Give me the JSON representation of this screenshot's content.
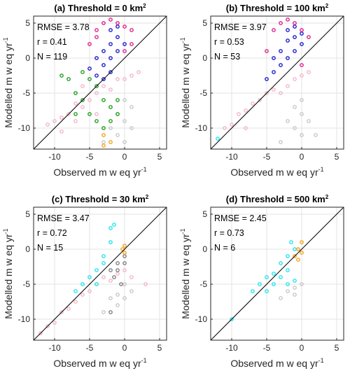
{
  "figure": {
    "xlabel_text": "Observed  m w eq yr",
    "ylabel_text": "Modelled m w eq yr",
    "unit_superscript": "-1"
  },
  "colors": {
    "pink": "#f4b6c8",
    "grey": "#c8c8c8",
    "darkgrey": "#808080",
    "green": "#1e9e1e",
    "blue": "#1a1ad0",
    "magenta": "#e0208a",
    "cyan": "#22e6f0",
    "orange": "#f5a21c",
    "line": "#000000"
  },
  "chart_data": [
    {
      "type": "scatter",
      "panel": "(a)",
      "title": "Threshold = 0 km",
      "title_superscript": "2",
      "xlabel": "Observed  m w eq yr-1",
      "ylabel": "Modelled m w eq yr-1",
      "xlim": [
        -13,
        6
      ],
      "ylim": [
        -13,
        6
      ],
      "xticks": [
        -10,
        -5,
        0,
        5
      ],
      "yticks": [
        -10,
        -5,
        0,
        5
      ],
      "grid": true,
      "one_to_one_line": true,
      "stats": [
        "RMSE = 3.78",
        "r = 0.41",
        "N = 119"
      ],
      "series": [
        {
          "color_key": "pink",
          "points": [
            [
              -11,
              -9.5
            ],
            [
              -10,
              -9
            ],
            [
              -9,
              -8.5
            ],
            [
              -8,
              -8
            ],
            [
              -7,
              -6.5
            ],
            [
              -6,
              -7
            ],
            [
              -5,
              -6
            ],
            [
              -4,
              -5
            ],
            [
              -3,
              -4
            ],
            [
              -2,
              -4.5
            ],
            [
              -1,
              -3
            ],
            [
              0,
              -3
            ],
            [
              1,
              -2.5
            ],
            [
              2,
              -2
            ],
            [
              -6,
              -4
            ],
            [
              -7,
              -9
            ],
            [
              -9,
              -10.5
            ],
            [
              -4,
              -8
            ]
          ]
        },
        {
          "color_key": "grey",
          "points": [
            [
              -2,
              -10
            ],
            [
              -1,
              -11
            ],
            [
              0,
              -12
            ],
            [
              -1,
              -8
            ],
            [
              0,
              -9
            ],
            [
              1,
              -10
            ],
            [
              -3,
              -12
            ],
            [
              0,
              -6
            ],
            [
              1,
              -7
            ]
          ]
        },
        {
          "color_key": "green",
          "points": [
            [
              -9,
              -2.5
            ],
            [
              -8,
              -3
            ],
            [
              -7,
              -5
            ],
            [
              -6,
              -6
            ],
            [
              -5,
              -8
            ],
            [
              -4,
              -9
            ],
            [
              -3,
              -10
            ],
            [
              -2,
              -9
            ],
            [
              -1,
              -8
            ],
            [
              -6,
              -2
            ],
            [
              -5,
              -3
            ],
            [
              -4,
              -4
            ],
            [
              -3,
              -6
            ],
            [
              -2,
              -7
            ],
            [
              -1,
              -6
            ],
            [
              -7,
              -8
            ]
          ]
        },
        {
          "color_key": "blue",
          "points": [
            [
              -4,
              -2.5
            ],
            [
              -3,
              -1
            ],
            [
              -2,
              0
            ],
            [
              -1,
              1
            ],
            [
              0,
              2
            ],
            [
              -3,
              1
            ],
            [
              -2,
              2
            ],
            [
              -1,
              3
            ],
            [
              -2,
              4
            ],
            [
              -1,
              4.5
            ],
            [
              -4,
              0
            ],
            [
              -5,
              -1.5
            ],
            [
              -3,
              -3
            ],
            [
              -2,
              -2
            ]
          ]
        },
        {
          "color_key": "magenta",
          "points": [
            [
              -4,
              4
            ],
            [
              -3,
              5
            ],
            [
              -2,
              5.5
            ],
            [
              -1,
              5
            ],
            [
              0,
              4.5
            ],
            [
              1,
              4
            ],
            [
              -5,
              2
            ],
            [
              -4,
              3
            ],
            [
              0,
              1
            ],
            [
              1,
              2
            ]
          ]
        },
        {
          "color_key": "orange",
          "points": [
            [
              -3,
              -11
            ],
            [
              -2,
              -12
            ],
            [
              -3,
              -12.5
            ]
          ]
        }
      ]
    },
    {
      "type": "scatter",
      "panel": "(b)",
      "title": "Threshold = 100 km",
      "title_superscript": "2",
      "xlabel": "Observed  m w eq yr-1",
      "ylabel": "Modelled m w eq yr-1",
      "xlim": [
        -13,
        6
      ],
      "ylim": [
        -13,
        6
      ],
      "xticks": [
        -10,
        -5,
        0,
        5
      ],
      "yticks": [
        -10,
        -5,
        0,
        5
      ],
      "grid": true,
      "one_to_one_line": true,
      "stats": [
        "RMSE = 3.97",
        "r = 0.53",
        "N = 53"
      ],
      "series": [
        {
          "color_key": "pink",
          "points": [
            [
              -11,
              -10
            ],
            [
              -10,
              -9.5
            ],
            [
              -9,
              -8
            ],
            [
              -8,
              -7.5
            ],
            [
              -7,
              -6.5
            ],
            [
              -6,
              -6
            ],
            [
              -5,
              -5
            ],
            [
              -4,
              -4.5
            ],
            [
              -3,
              -5
            ],
            [
              -2,
              -4
            ],
            [
              -1,
              -3
            ],
            [
              0,
              -2.5
            ],
            [
              1,
              -2
            ],
            [
              -8,
              -10
            ]
          ]
        },
        {
          "color_key": "grey",
          "points": [
            [
              -2,
              -9
            ],
            [
              -1,
              -10
            ],
            [
              0,
              -11
            ],
            [
              -1,
              -7
            ],
            [
              0,
              -8
            ],
            [
              1,
              -9
            ],
            [
              2,
              -11
            ],
            [
              -3,
              -12
            ],
            [
              0,
              -6
            ]
          ]
        },
        {
          "color_key": "cyan",
          "points": [
            [
              -12,
              -11.5
            ]
          ]
        },
        {
          "color_key": "blue",
          "points": [
            [
              -4,
              -2
            ],
            [
              -3,
              -1
            ],
            [
              -2,
              0
            ],
            [
              -1,
              1
            ],
            [
              0,
              2
            ],
            [
              -3,
              1
            ],
            [
              -2,
              2.5
            ],
            [
              -1,
              3
            ],
            [
              -2,
              4
            ],
            [
              -1,
              4.5
            ],
            [
              -5,
              -3
            ],
            [
              -4,
              0
            ],
            [
              0,
              3.5
            ]
          ]
        },
        {
          "color_key": "magenta",
          "points": [
            [
              -4,
              4
            ],
            [
              -3,
              5
            ],
            [
              -2,
              5.5
            ],
            [
              -1,
              5
            ],
            [
              0,
              4
            ],
            [
              -5,
              1
            ],
            [
              1,
              3
            ],
            [
              0,
              -1
            ]
          ]
        }
      ]
    },
    {
      "type": "scatter",
      "panel": "(c)",
      "title": "Threshold = 30 km",
      "title_superscript": "2",
      "xlabel": "Observed  m w eq yr-1",
      "ylabel": "Modelled m w eq yr-1",
      "xlim": [
        -13,
        6
      ],
      "ylim": [
        -13,
        6
      ],
      "xticks": [
        -10,
        -5,
        0,
        5
      ],
      "yticks": [
        -10,
        -5,
        0,
        5
      ],
      "grid": true,
      "one_to_one_line": true,
      "stats": [
        "RMSE = 3.47",
        "r = 0.72",
        "N = 15"
      ],
      "series": [
        {
          "color_key": "pink",
          "points": [
            [
              -12,
              -12
            ],
            [
              -11,
              -11
            ],
            [
              -10,
              -10.5
            ],
            [
              -9,
              -9
            ],
            [
              -8,
              -8.5
            ],
            [
              -7,
              -7.5
            ],
            [
              -6,
              -6.5
            ],
            [
              -5,
              -6
            ],
            [
              -4,
              -5
            ],
            [
              -3,
              -4
            ],
            [
              -2,
              -4.5
            ],
            [
              -1,
              -3.5
            ],
            [
              0,
              -3
            ],
            [
              1,
              -4
            ],
            [
              3,
              -5
            ]
          ]
        },
        {
          "color_key": "grey",
          "points": [
            [
              -2,
              -7
            ],
            [
              -1,
              -6.5
            ],
            [
              0,
              -5
            ],
            [
              1,
              -6
            ],
            [
              -3,
              -9
            ],
            [
              -1,
              -8
            ],
            [
              0,
              -7
            ]
          ]
        },
        {
          "color_key": "darkgrey",
          "points": [
            [
              -2,
              -3
            ],
            [
              -1,
              -2
            ],
            [
              0,
              -1
            ],
            [
              -1.5,
              -4
            ],
            [
              -0.5,
              -5
            ],
            [
              -1,
              -3
            ],
            [
              -2,
              -9
            ],
            [
              0,
              -2
            ]
          ]
        },
        {
          "color_key": "cyan",
          "points": [
            [
              -4,
              -3
            ],
            [
              -3,
              -1
            ],
            [
              -2,
              1
            ],
            [
              -2,
              3
            ],
            [
              -1.5,
              3.5
            ],
            [
              -3,
              -2
            ],
            [
              -6,
              -5
            ],
            [
              -5,
              -4
            ],
            [
              -4,
              -5
            ],
            [
              -7,
              -6
            ]
          ]
        },
        {
          "color_key": "orange",
          "points": [
            [
              0,
              0.5
            ],
            [
              0,
              -0.5
            ],
            [
              -0.3,
              0
            ]
          ]
        }
      ]
    },
    {
      "type": "scatter",
      "panel": "(d)",
      "title": "Threshold = 500 km",
      "title_superscript": "2",
      "xlabel": "Observed  m w eq yr-1",
      "ylabel": "Modelled m w eq yr-1",
      "xlim": [
        -13,
        6
      ],
      "ylim": [
        -13,
        6
      ],
      "xticks": [
        -10,
        -5,
        0,
        5
      ],
      "yticks": [
        -10,
        -5,
        0,
        5
      ],
      "grid": true,
      "one_to_one_line": true,
      "stats": [
        "RMSE = 2.45",
        "r = 0.73",
        "N = 6"
      ],
      "series": [
        {
          "color_key": "cyan",
          "points": [
            [
              -10,
              -10
            ],
            [
              -7,
              -6
            ],
            [
              -6,
              -5
            ],
            [
              -5,
              -4
            ],
            [
              -4,
              -3.5
            ],
            [
              -3,
              -4
            ],
            [
              -2,
              -3
            ],
            [
              -3,
              -2
            ],
            [
              -2,
              -1
            ],
            [
              -1,
              0
            ],
            [
              -1.5,
              1
            ],
            [
              -4,
              -5
            ],
            [
              -5,
              -6
            ],
            [
              -2,
              -5
            ],
            [
              -1,
              -4.5
            ]
          ]
        },
        {
          "color_key": "grey",
          "points": [
            [
              -1,
              -6.5
            ],
            [
              -2,
              -6
            ],
            [
              0,
              -5
            ],
            [
              -1,
              -5.5
            ],
            [
              -3,
              -7
            ]
          ]
        },
        {
          "color_key": "orange",
          "points": [
            [
              -1,
              -1
            ],
            [
              -0.5,
              0
            ],
            [
              0,
              1
            ],
            [
              0,
              -0.5
            ],
            [
              -0.5,
              -1.5
            ]
          ]
        }
      ]
    }
  ]
}
